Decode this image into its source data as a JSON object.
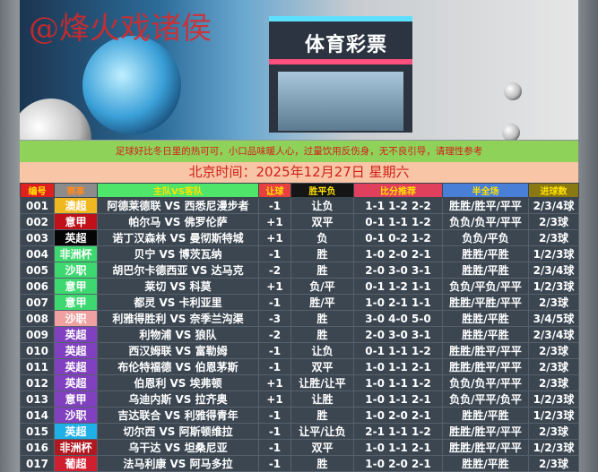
{
  "banner": {
    "watermark": "@烽火戏诸侯",
    "store_sign": "体育彩票"
  },
  "notice": "足球好比冬日里的热可可，小口品味暖人心，过量饮用反伤身，无不良引导，请理性参考",
  "date_line": "北京时间：2025年12月27日  星期六",
  "headers": [
    {
      "label": "编号",
      "bg": "#e0201f",
      "color": "#ffe200"
    },
    {
      "label": "赛事",
      "bg": "#8c8c8c",
      "color": "#ff8a20"
    },
    {
      "label": "主队VS客队",
      "bg": "#4fe46a",
      "color": "#ffe200"
    },
    {
      "label": "让球",
      "bg": "#e84040",
      "color": "#ffe200"
    },
    {
      "label": "胜平负",
      "bg": "#151515",
      "color": "#ffe200"
    },
    {
      "label": "比分推荐",
      "bg": "#e0405c",
      "color": "#ffe200"
    },
    {
      "label": "半全场",
      "bg": "#4a7fd8",
      "color": "#ffe200"
    },
    {
      "label": "进球数",
      "bg": "#8a7812",
      "color": "#ffe200"
    }
  ],
  "rows": [
    {
      "no": "001",
      "league": "澳超",
      "league_color": "#f0b820",
      "match": "阿德莱德联 VS 西悉尼漫步者",
      "handicap": "-1",
      "result": "让负",
      "scores": "1-1 1-2 2-2",
      "half_full": "胜胜/胜平/平平",
      "goals": "2/3/4球"
    },
    {
      "no": "002",
      "league": "意甲",
      "league_color": "#c0101a",
      "match": "帕尔马 VS 佛罗伦萨",
      "handicap": "+1",
      "result": "双平",
      "scores": "0-1 1-1 1-2",
      "half_full": "负负/负平/平平",
      "goals": "2/3球"
    },
    {
      "no": "003",
      "league": "英超",
      "league_color": "#050505",
      "match": "诺丁汉森林 VS 曼彻斯特城",
      "handicap": "+1",
      "result": "负",
      "scores": "0-1 0-2 1-2",
      "half_full": "负负/平负",
      "goals": "2/3球"
    },
    {
      "no": "004",
      "league": "非洲杯",
      "league_color": "#3ed870",
      "match": "贝宁 VS 博茨瓦纳",
      "handicap": "-1",
      "result": "胜",
      "scores": "1-0 2-0 2-1",
      "half_full": "胜胜/平胜",
      "goals": "1/2/3球"
    },
    {
      "no": "005",
      "league": "沙职",
      "league_color": "#3ed870",
      "match": "胡巴尔卡德西亚 VS 达马克",
      "handicap": "-2",
      "result": "胜",
      "scores": "2-0 3-0 3-1",
      "half_full": "胜胜/平胜",
      "goals": "2/3/4球"
    },
    {
      "no": "006",
      "league": "意甲",
      "league_color": "#3ed870",
      "match": "莱切 VS 科莫",
      "handicap": "+1",
      "result": "负/平",
      "scores": "0-1 1-2 1-1",
      "half_full": "负负/平负/平平",
      "goals": "1/2/3球"
    },
    {
      "no": "007",
      "league": "意甲",
      "league_color": "#3ed870",
      "match": "都灵 VS 卡利亚里",
      "handicap": "-1",
      "result": "胜/平",
      "scores": "1-0 2-1 1-1",
      "half_full": "胜胜/平胜/平平",
      "goals": "2/3球"
    },
    {
      "no": "008",
      "league": "沙职",
      "league_color": "#f0a0a0",
      "match": "利雅得胜利 VS 奈季兰沟渠",
      "handicap": "-3",
      "result": "胜",
      "scores": "3-0 4-0 5-0",
      "half_full": "胜胜/平胜",
      "goals": "3/4/5球"
    },
    {
      "no": "009",
      "league": "英超",
      "league_color": "#8040c0",
      "match": "利物浦 VS 狼队",
      "handicap": "-2",
      "result": "胜",
      "scores": "2-0 3-0 3-1",
      "half_full": "胜胜/平胜",
      "goals": "2/3/4球"
    },
    {
      "no": "010",
      "league": "英超",
      "league_color": "#8040c0",
      "match": "西汉姆联 VS 富勒姆",
      "handicap": "-1",
      "result": "让负",
      "scores": "0-1 1-1 1-2",
      "half_full": "胜胜/胜平/平平",
      "goals": "2/3球"
    },
    {
      "no": "011",
      "league": "英超",
      "league_color": "#8040c0",
      "match": "布伦特福德 VS 伯恩茅斯",
      "handicap": "-1",
      "result": "双平",
      "scores": "1-0 1-1 2-1",
      "half_full": "胜胜/胜平/平平",
      "goals": "2/3球"
    },
    {
      "no": "012",
      "league": "英超",
      "league_color": "#8040c0",
      "match": "伯恩利 VS 埃弗顿",
      "handicap": "+1",
      "result": "让胜/让平",
      "scores": "1-0 1-1 1-2",
      "half_full": "负负/负平/平平",
      "goals": "2/3球"
    },
    {
      "no": "013",
      "league": "意甲",
      "league_color": "#8040c0",
      "match": "乌迪内斯 VS 拉齐奥",
      "handicap": "+1",
      "result": "让胜",
      "scores": "1-0 1-1 2-1",
      "half_full": "负负/平平/负平",
      "goals": "1/2/3球"
    },
    {
      "no": "014",
      "league": "沙职",
      "league_color": "#8040c0",
      "match": "吉达联合 VS 利雅得青年",
      "handicap": "-1",
      "result": "胜",
      "scores": "1-0 2-0 2-1",
      "half_full": "胜胜/平胜",
      "goals": "1/2/3球"
    },
    {
      "no": "015",
      "league": "英超",
      "league_color": "#20b0e8",
      "match": "切尔西 VS 阿斯顿维拉",
      "handicap": "-1",
      "result": "让平/让负",
      "scores": "2-1 1-1 1-2",
      "half_full": "胜胜/胜平/平平",
      "goals": "2/3球"
    },
    {
      "no": "016",
      "league": "非洲杯",
      "league_color": "#b01820",
      "match": "乌干达 VS 坦桑尼亚",
      "handicap": "-1",
      "result": "双平",
      "scores": "1-0 1-1 2-1",
      "half_full": "胜胜/胜平/平平",
      "goals": "1/2/3球"
    },
    {
      "no": "017",
      "league": "葡超",
      "league_color": "#d02030",
      "match": "法马利康 VS 阿马多拉",
      "handicap": "-1",
      "result": "胜",
      "scores": "1-0 2-0 2-1",
      "half_full": "胜胜/平胜",
      "goals": "2/3球"
    }
  ]
}
